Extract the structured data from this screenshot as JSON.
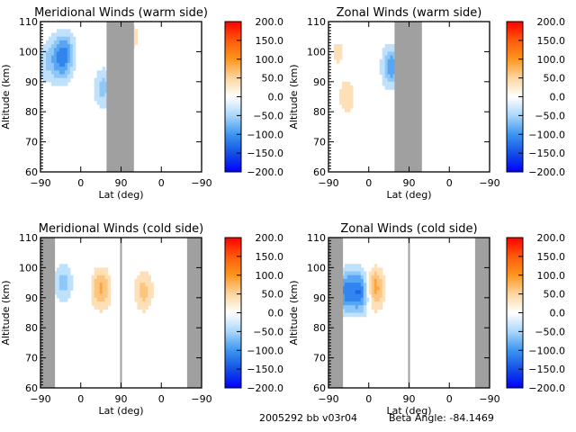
{
  "chart_data": [
    {
      "type": "heatmap",
      "title": "Meridional Winds (warm side)",
      "xlabel": "Lat (deg)",
      "ylabel": "Altitude (km)",
      "xtick_labels": [
        "-90",
        "0",
        "90",
        "0",
        "-90"
      ],
      "ytick_labels": [
        "60",
        "70",
        "80",
        "90",
        "100",
        "110"
      ],
      "ylim": [
        60,
        110
      ],
      "gap_region": "gray band between ~60 and ~120 of the 0-360 lat path",
      "colorbar": {
        "min": -200,
        "max": 200,
        "tick_labels": [
          "200.0",
          "150.0",
          "100.0",
          "50.0",
          "0.0",
          "-50.0",
          "-100.0",
          "-150.0",
          "-200.0"
        ]
      },
      "features": [
        {
          "x": 25,
          "y": 100,
          "value": -30
        },
        {
          "x": 45,
          "y": 95,
          "value": -50
        },
        {
          "x": 55,
          "y": 100,
          "value": -80
        },
        {
          "x": 140,
          "y": 88,
          "value": -60
        },
        {
          "x": 200,
          "y": 105,
          "value": 40
        },
        {
          "x": 10,
          "y": 95,
          "value": -30
        }
      ]
    },
    {
      "type": "heatmap",
      "title": "Zonal Winds (warm side)",
      "xlabel": "Lat (deg)",
      "ylabel": "Altitude (km)",
      "xtick_labels": [
        "-90",
        "0",
        "90",
        "0",
        "-90"
      ],
      "ytick_labels": [
        "60",
        "70",
        "80",
        "90",
        "100",
        "110"
      ],
      "ylim": [
        60,
        110
      ],
      "colorbar": {
        "min": -200,
        "max": 200,
        "tick_labels": [
          "200.0",
          "150.0",
          "100.0",
          "50.0",
          "0.0",
          "-50.0",
          "-100.0",
          "-150.0",
          "-200.0"
        ]
      },
      "features": [
        {
          "x": 20,
          "y": 100,
          "value": 30
        },
        {
          "x": 40,
          "y": 85,
          "value": 40
        },
        {
          "x": 140,
          "y": 95,
          "value": -90
        },
        {
          "x": 180,
          "y": 95,
          "value": -50
        }
      ]
    },
    {
      "type": "heatmap",
      "title": "Meridional Winds (cold side)",
      "xlabel": "Lat (deg)",
      "ylabel": "Altitude (km)",
      "xtick_labels": [
        "-90",
        "0",
        "90",
        "0",
        "-90"
      ],
      "ytick_labels": [
        "60",
        "70",
        "80",
        "90",
        "100",
        "110"
      ],
      "ylim": [
        60,
        110
      ],
      "colorbar": {
        "min": -200,
        "max": 200,
        "tick_labels": [
          "200.0",
          "150.0",
          "100.0",
          "50.0",
          "0.0",
          "-50.0",
          "-100.0",
          "-150.0",
          "-200.0"
        ]
      },
      "features": [
        {
          "x": 135,
          "y": 93,
          "value": 80
        },
        {
          "x": 50,
          "y": 95,
          "value": -60
        },
        {
          "x": 230,
          "y": 92,
          "value": 60
        }
      ]
    },
    {
      "type": "heatmap",
      "title": "Zonal Winds (cold side)",
      "xlabel": "Lat (deg)",
      "ylabel": "Altitude (km)",
      "xtick_labels": [
        "-90",
        "0",
        "90",
        "0",
        "-90"
      ],
      "ytick_labels": [
        "60",
        "70",
        "80",
        "90",
        "100",
        "110"
      ],
      "ylim": [
        60,
        110
      ],
      "colorbar": {
        "min": -200,
        "max": 200,
        "tick_labels": [
          "200.0",
          "150.0",
          "100.0",
          "50.0",
          "0.0",
          "-50.0",
          "-100.0",
          "-150.0",
          "-200.0"
        ]
      },
      "features": [
        {
          "x": 40,
          "y": 92,
          "value": -110
        },
        {
          "x": 75,
          "y": 92,
          "value": -130
        },
        {
          "x": 100,
          "y": 93,
          "value": 110
        }
      ]
    }
  ],
  "footer": {
    "id_label": "2005292 bb v03r04",
    "beta_label": "Beta Angle: -84.1469"
  }
}
